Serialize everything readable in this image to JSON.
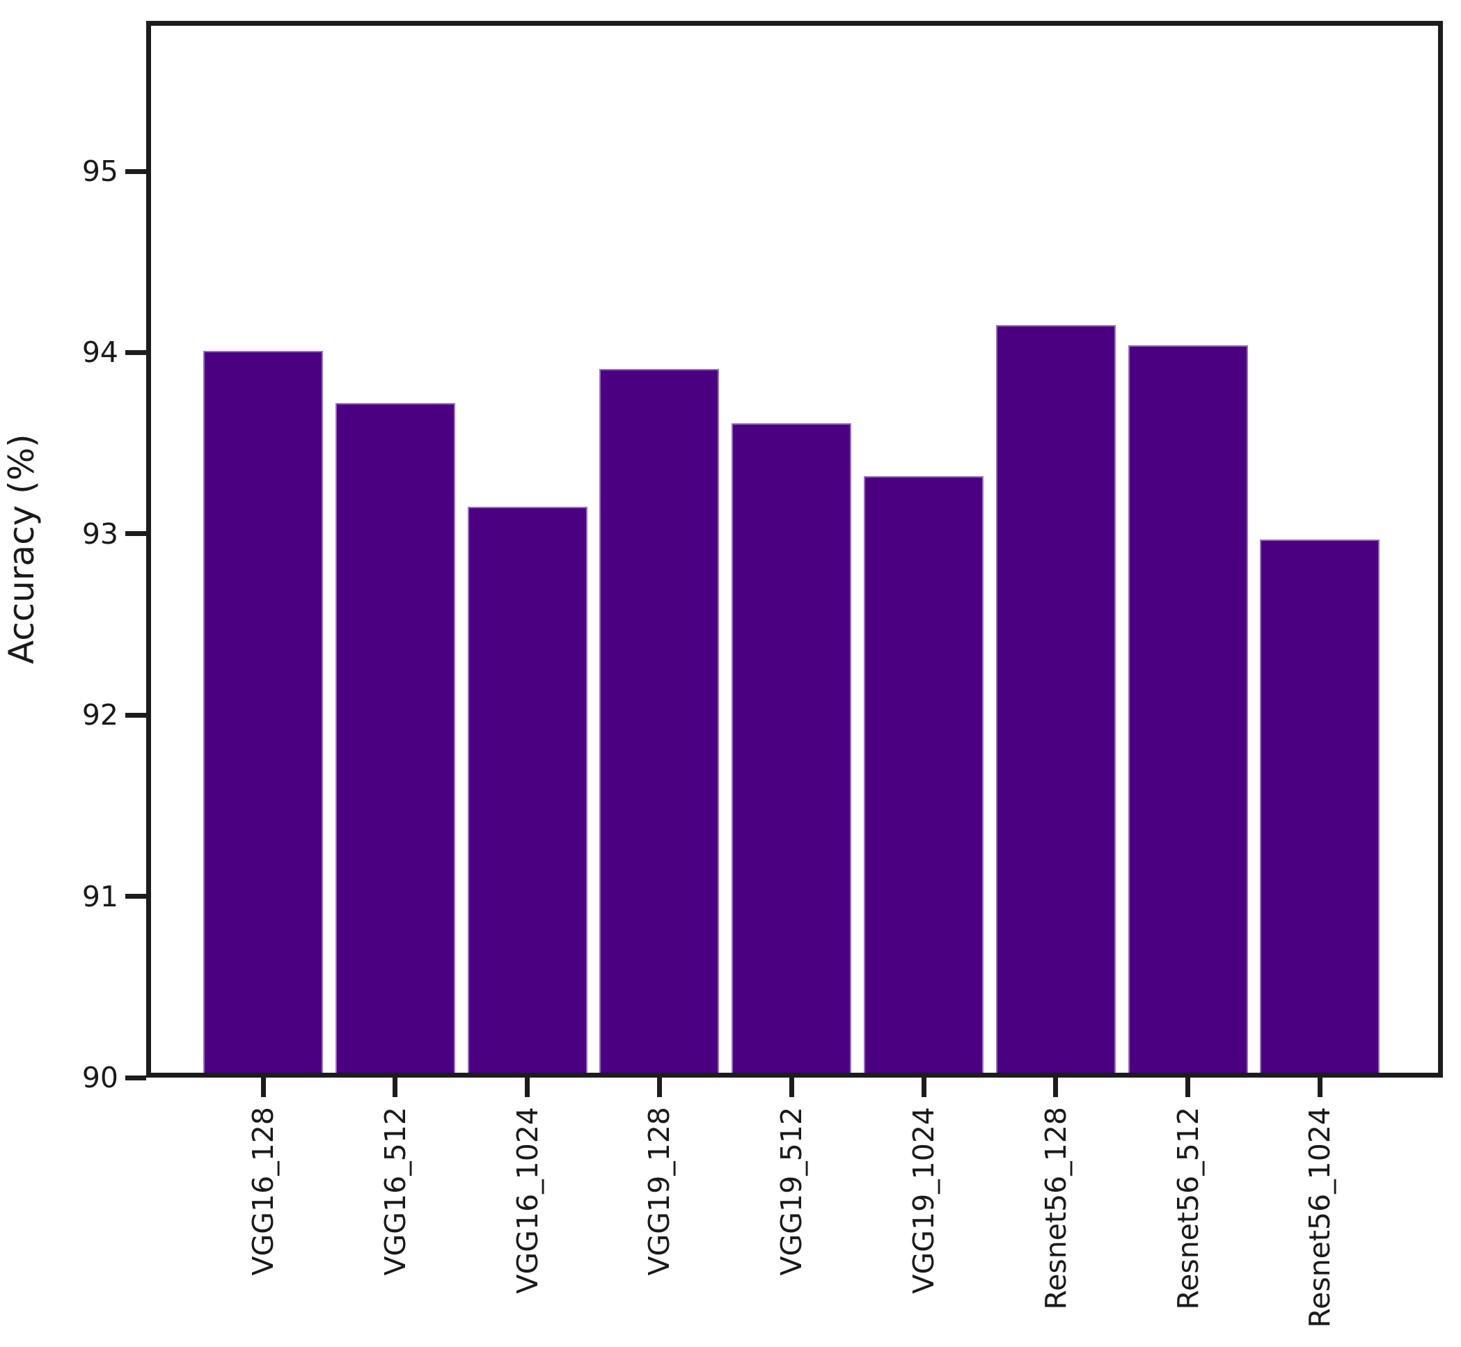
{
  "chart_data": {
    "type": "bar",
    "title": "",
    "xlabel": "",
    "ylabel": "Accuracy (%)",
    "categories": [
      "VGG16_128",
      "VGG16_512",
      "VGG16_1024",
      "VGG19_128",
      "VGG19_512",
      "VGG19_1024",
      "Resnet56_128",
      "Resnet56_512",
      "Resnet56_1024"
    ],
    "values": [
      94.01,
      93.72,
      93.15,
      93.91,
      93.61,
      93.32,
      94.15,
      94.04,
      92.97
    ],
    "ylim": [
      90,
      95.83
    ],
    "yticks": [
      90,
      91,
      92,
      93,
      94,
      95
    ],
    "bar_color": "#4B0082",
    "axis_color": "#1c1c1c",
    "grid": false,
    "legend": null
  }
}
